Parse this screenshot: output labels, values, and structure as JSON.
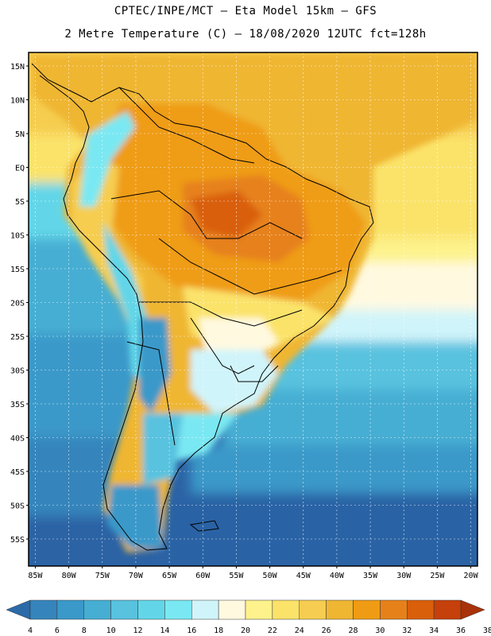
{
  "title": {
    "line1": "CPTEC/INPE/MCT –  Eta Model 15km – GFS",
    "line2": "2 Metre Temperature (C) – 18/08/2020 12UTC fct=128h"
  },
  "axes": {
    "lat_labels": [
      "15N",
      "10N",
      "5N",
      "EQ",
      "5S",
      "10S",
      "15S",
      "20S",
      "25S",
      "30S",
      "35S",
      "40S",
      "45S",
      "50S",
      "55S"
    ],
    "lat_values": [
      15,
      10,
      5,
      0,
      -5,
      -10,
      -15,
      -20,
      -25,
      -30,
      -35,
      -40,
      -45,
      -50,
      -55
    ],
    "lon_labels": [
      "85W",
      "80W",
      "75W",
      "70W",
      "65W",
      "60W",
      "55W",
      "50W",
      "45W",
      "40W",
      "35W",
      "30W",
      "25W",
      "20W"
    ],
    "lon_values": [
      -85,
      -80,
      -75,
      -70,
      -65,
      -60,
      -55,
      -50,
      -45,
      -40,
      -35,
      -30,
      -25,
      -20
    ],
    "lon_range": [
      -86,
      -19
    ],
    "lat_range": [
      -59,
      17
    ]
  },
  "legend": {
    "labels": [
      "4",
      "6",
      "8",
      "10",
      "12",
      "14",
      "16",
      "18",
      "20",
      "22",
      "24",
      "26",
      "28",
      "30",
      "32",
      "34",
      "36",
      "38"
    ],
    "colors": [
      "#2c6aa8",
      "#3585bc",
      "#3a99c9",
      "#46aed3",
      "#58c2df",
      "#62d6e8",
      "#7ae8f2",
      "#cff4fa",
      "#fff9e0",
      "#fdf28c",
      "#fbe36a",
      "#f6cd50",
      "#efb632",
      "#ef9c14",
      "#e6811a",
      "#d95f0a",
      "#c5400a",
      "#a8320a"
    ]
  }
}
